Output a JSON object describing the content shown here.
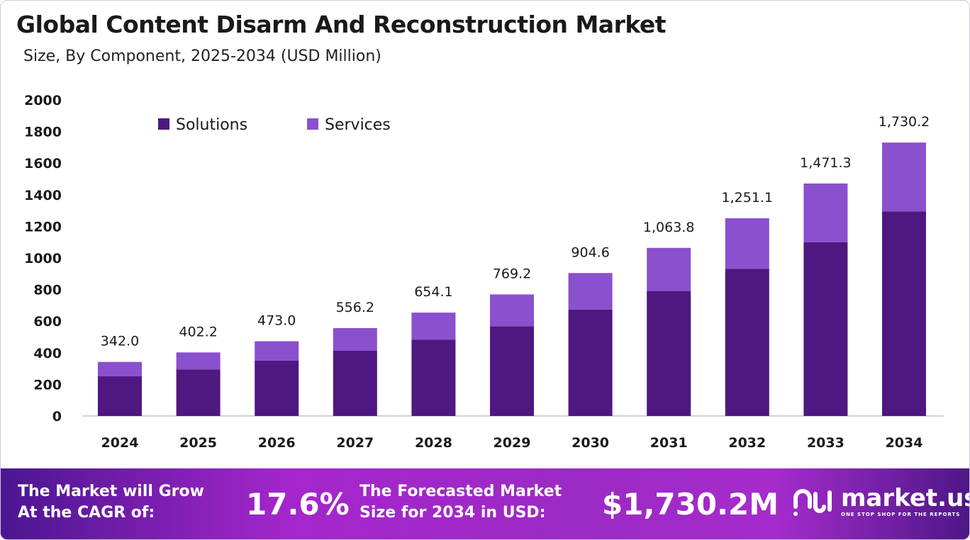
{
  "header": {
    "title": "Global Content Disarm And Reconstruction Market",
    "subtitle": "Size, By Component, 2025-2034 (USD Million)"
  },
  "colors": {
    "solutions": "#4f1780",
    "services": "#8b50cd"
  },
  "chart_data": {
    "type": "bar",
    "stacked": true,
    "categories": [
      "2024",
      "2025",
      "2026",
      "2027",
      "2028",
      "2029",
      "2030",
      "2031",
      "2032",
      "2033",
      "2034"
    ],
    "series": [
      {
        "name": "Solutions",
        "values": [
          251,
          295,
          350,
          414,
          482,
          568,
          673,
          791,
          932,
          1100,
          1295
        ]
      },
      {
        "name": "Services",
        "values": [
          91,
          107.2,
          123,
          142.2,
          172.1,
          201.2,
          231.6,
          272.8,
          319.1,
          371.3,
          435.2
        ]
      }
    ],
    "totals": [
      342.0,
      402.2,
      473.0,
      556.2,
      654.1,
      769.2,
      904.6,
      1063.8,
      1251.1,
      1471.3,
      1730.2
    ],
    "total_labels": [
      "342.0",
      "402.2",
      "473.0",
      "556.2",
      "654.1",
      "769.2",
      "904.6",
      "1,063.8",
      "1,251.1",
      "1,471.3",
      "1,730.2"
    ],
    "ylim": [
      0,
      2000
    ],
    "yticks": [
      "0",
      "200",
      "400",
      "600",
      "800",
      "1000",
      "1200",
      "1400",
      "1600",
      "1800",
      "2000"
    ],
    "grid": false,
    "legend": "top-left"
  },
  "footer": {
    "cagr_label_1": "The Market will Grow",
    "cagr_label_2": "At the CAGR of:",
    "cagr_value": "17.6%",
    "forecast_label_1": "The Forecasted Market",
    "forecast_label_2": "Size for 2034 in USD:",
    "forecast_value": "$1,730.2M",
    "logo_name": "market.us",
    "logo_tagline": "ONE STOP SHOP FOR THE REPORTS"
  }
}
